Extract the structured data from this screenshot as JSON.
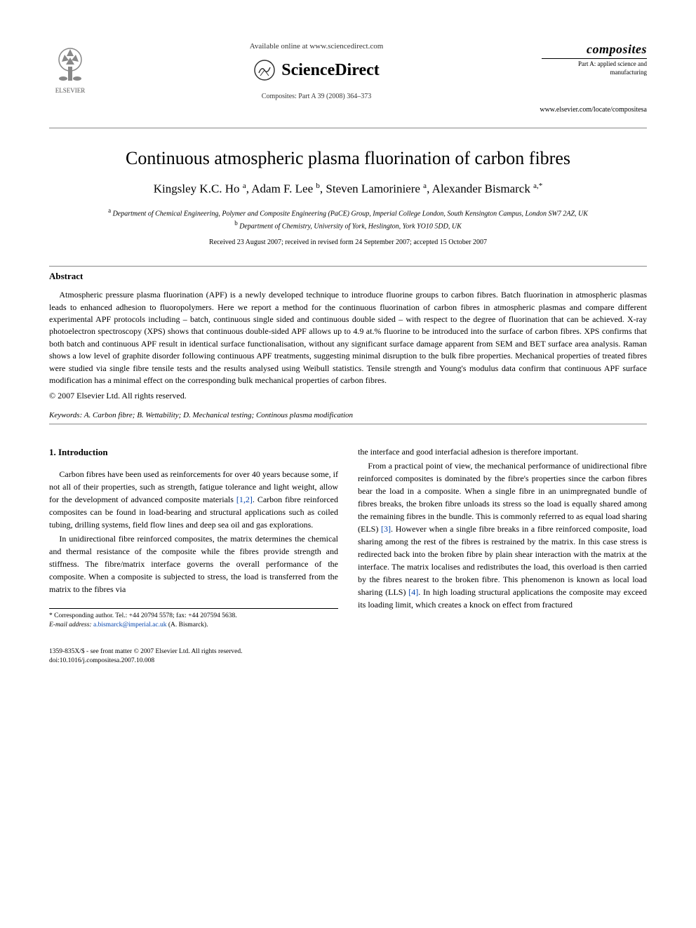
{
  "header": {
    "available_online": "Available online at www.sciencedirect.com",
    "sciencedirect": "ScienceDirect",
    "journal_ref": "Composites: Part A 39 (2008) 364–373",
    "elsevier": "ELSEVIER",
    "journal_title": "composites",
    "journal_sub": "Part A: applied science and manufacturing",
    "journal_url": "www.elsevier.com/locate/compositesa"
  },
  "article": {
    "title": "Continuous atmospheric plasma fluorination of carbon fibres",
    "authors_html": "Kingsley K.C. Ho <sup>a</sup>, Adam F. Lee <sup>b</sup>, Steven Lamoriniere <sup>a</sup>, Alexander Bismarck <sup>a,*</sup>",
    "affil_a": "Department of Chemical Engineering, Polymer and Composite Engineering (PaCE) Group, Imperial College London, South Kensington Campus, London SW7 2AZ, UK",
    "affil_b": "Department of Chemistry, University of York, Heslington, York YO10 5DD, UK",
    "received": "Received 23 August 2007; received in revised form 24 September 2007; accepted 15 October 2007"
  },
  "abstract": {
    "label": "Abstract",
    "text": "Atmospheric pressure plasma fluorination (APF) is a newly developed technique to introduce fluorine groups to carbon fibres. Batch fluorination in atmospheric plasmas leads to enhanced adhesion to fluoropolymers. Here we report a method for the continuous fluorination of carbon fibres in atmospheric plasmas and compare different experimental APF protocols including – batch, continuous single sided and continuous double sided – with respect to the degree of fluorination that can be achieved. X-ray photoelectron spectroscopy (XPS) shows that continuous double-sided APF allows up to 4.9 at.% fluorine to be introduced into the surface of carbon fibres. XPS confirms that both batch and continuous APF result in identical surface functionalisation, without any significant surface damage apparent from SEM and BET surface area analysis. Raman shows a low level of graphite disorder following continuous APF treatments, suggesting minimal disruption to the bulk fibre properties. Mechanical properties of treated fibres were studied via single fibre tensile tests and the results analysed using Weibull statistics. Tensile strength and Young's modulus data confirm that continuous APF surface modification has a minimal effect on the corresponding bulk mechanical properties of carbon fibres.",
    "copyright": "© 2007 Elsevier Ltd. All rights reserved."
  },
  "keywords": {
    "label": "Keywords:",
    "text": "A. Carbon fibre; B. Wettability; D. Mechanical testing; Continous plasma modification"
  },
  "intro": {
    "heading": "1. Introduction",
    "p1": "Carbon fibres have been used as reinforcements for over 40 years because some, if not all of their properties, such as strength, fatigue tolerance and light weight, allow for the development of advanced composite materials ",
    "ref1": "[1,2]",
    "p1b": ". Carbon fibre reinforced composites can be found in load-bearing and structural applications such as coiled tubing, drilling systems, field flow lines and deep sea oil and gas explorations.",
    "p2": "In unidirectional fibre reinforced composites, the matrix determines the chemical and thermal resistance of the composite while the fibres provide strength and stiffness. The fibre/matrix interface governs the overall performance of the composite. When a composite is subjected to stress, the load is transferred from the matrix to the fibres via",
    "p3": "the interface and good interfacial adhesion is therefore important.",
    "p4a": "From a practical point of view, the mechanical performance of unidirectional fibre reinforced composites is dominated by the fibre's properties since the carbon fibres bear the load in a composite. When a single fibre in an unimpregnated bundle of fibres breaks, the broken fibre unloads its stress so the load is equally shared among the remaining fibres in the bundle. This is commonly referred to as equal load sharing (ELS) ",
    "ref3": "[3]",
    "p4b": ". However when a single fibre breaks in a fibre reinforced composite, load sharing among the rest of the fibres is restrained by the matrix. In this case stress is redirected back into the broken fibre by plain shear interaction with the matrix at the interface. The matrix localises and redistributes the load, this overload is then carried by the fibres nearest to the broken fibre. This phenomenon is known as local load sharing (LLS) ",
    "ref4": "[4]",
    "p4c": ". In high loading structural applications the composite may exceed its loading limit, which creates a knock on effect from fractured"
  },
  "corr": {
    "line1": "* Corresponding author. Tel.: +44 20794 5578; fax: +44 207594 5638.",
    "email_label": "E-mail address:",
    "email": "a.bismarck@imperial.ac.uk",
    "email_name": "(A. Bismarck)."
  },
  "footer": {
    "issn": "1359-835X/$ - see front matter © 2007 Elsevier Ltd. All rights reserved.",
    "doi": "doi:10.1016/j.compositesa.2007.10.008"
  },
  "colors": {
    "text": "#000000",
    "link": "#0645ad",
    "background": "#ffffff",
    "rule": "#888888"
  }
}
